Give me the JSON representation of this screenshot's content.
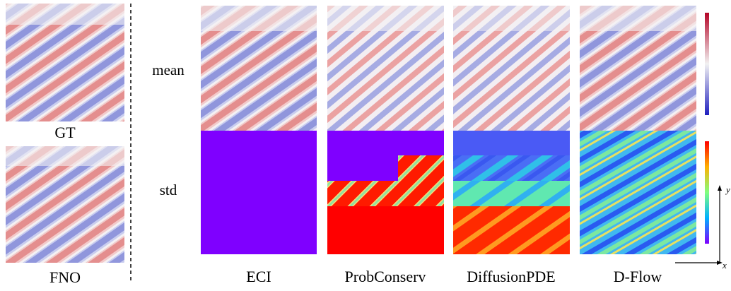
{
  "left_panels": [
    {
      "label": "GT"
    },
    {
      "label": "FNO"
    }
  ],
  "row_labels": [
    "mean",
    "std"
  ],
  "columns": [
    "ECI",
    "ProbConserv",
    "DiffusionPDE",
    "D-Flow"
  ],
  "axes": {
    "y": "y",
    "x": "x"
  }
}
